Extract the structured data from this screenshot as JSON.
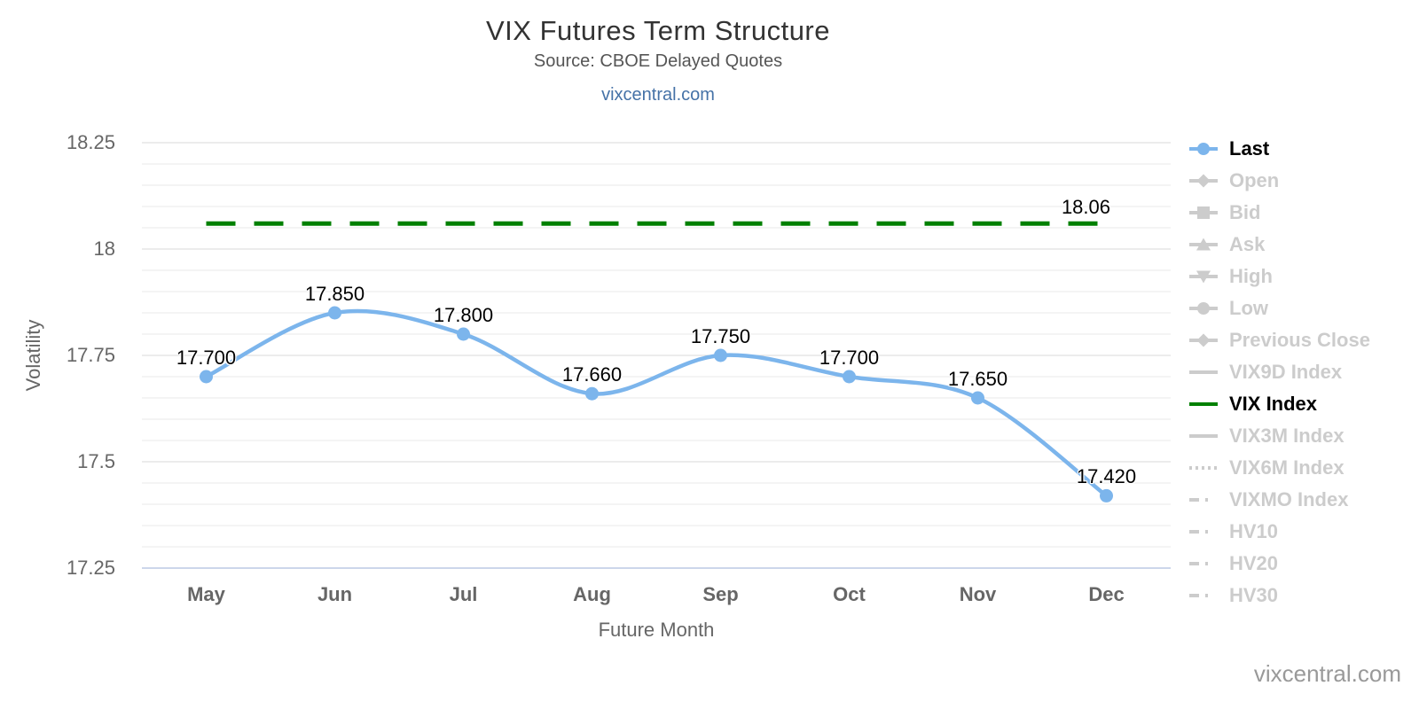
{
  "page": {
    "background": "#ffffff"
  },
  "links": {
    "header_link": "vixcentral.com",
    "watermark": "vixcentral.com"
  },
  "chart_data": {
    "type": "line",
    "title": "VIX Futures Term Structure",
    "subtitle": "Source: CBOE Delayed Quotes",
    "xlabel": "Future Month",
    "ylabel": "Volatility",
    "categories": [
      "May",
      "Jun",
      "Jul",
      "Aug",
      "Sep",
      "Oct",
      "Nov",
      "Dec"
    ],
    "series": [
      {
        "name": "Last",
        "type": "spline",
        "color": "#7cb5ec",
        "values": [
          17.7,
          17.85,
          17.8,
          17.66,
          17.75,
          17.7,
          17.65,
          17.42
        ],
        "point_labels": [
          "17.700",
          "17.850",
          "17.800",
          "17.660",
          "17.750",
          "17.700",
          "17.650",
          "17.420"
        ]
      },
      {
        "name": "VIX Index",
        "type": "dashed-horizontal-line",
        "color": "#008000",
        "value": 18.06,
        "label": "18.06"
      }
    ],
    "y_axis": {
      "min": 17.25,
      "max": 18.25,
      "tick_values": [
        17.25,
        17.5,
        17.75,
        18,
        18.25
      ],
      "tick_labels": [
        "17.25",
        "17.5",
        "17.75",
        "18",
        "18.25"
      ],
      "minor_step": 0.05
    },
    "x_axis": {
      "line_color": "#ccd6eb"
    },
    "grid": {
      "on": true,
      "minor_color": "#e9e9e9",
      "major_color": "#d9d9d9"
    },
    "legend_position": "right"
  },
  "legend": {
    "items": [
      {
        "label": "Last",
        "marker": "line-circle",
        "color": "#7cb5ec",
        "active": true
      },
      {
        "label": "Open",
        "marker": "line-diamond",
        "color": "#cccccc",
        "active": false
      },
      {
        "label": "Bid",
        "marker": "line-square",
        "color": "#cccccc",
        "active": false
      },
      {
        "label": "Ask",
        "marker": "line-triangle-up",
        "color": "#cccccc",
        "active": false
      },
      {
        "label": "High",
        "marker": "line-triangle-down",
        "color": "#cccccc",
        "active": false
      },
      {
        "label": "Low",
        "marker": "line-circle",
        "color": "#cccccc",
        "active": false
      },
      {
        "label": "Previous Close",
        "marker": "line-diamond",
        "color": "#cccccc",
        "active": false
      },
      {
        "label": "VIX9D Index",
        "marker": "line",
        "color": "#cccccc",
        "active": false
      },
      {
        "label": "VIX Index",
        "marker": "line",
        "color": "#008000",
        "active": true
      },
      {
        "label": "VIX3M Index",
        "marker": "line",
        "color": "#cccccc",
        "active": false
      },
      {
        "label": "VIX6M Index",
        "marker": "dotted",
        "color": "#cccccc",
        "active": false
      },
      {
        "label": "VIXMO Index",
        "marker": "dashdot",
        "color": "#cccccc",
        "active": false
      },
      {
        "label": "HV10",
        "marker": "dashdot",
        "color": "#cccccc",
        "active": false
      },
      {
        "label": "HV20",
        "marker": "dashdot",
        "color": "#cccccc",
        "active": false
      },
      {
        "label": "HV30",
        "marker": "dashdot",
        "color": "#cccccc",
        "active": false
      }
    ]
  },
  "colors": {
    "accent_blue": "#7cb5ec",
    "vix_green": "#008000",
    "disabled_gray": "#cccccc",
    "link_blue": "#4572a7",
    "title_text": "#333333",
    "subtitle_text": "#555555",
    "axis_text": "#666666",
    "active_legend_text": "#000000",
    "watermark_text": "#999999"
  }
}
